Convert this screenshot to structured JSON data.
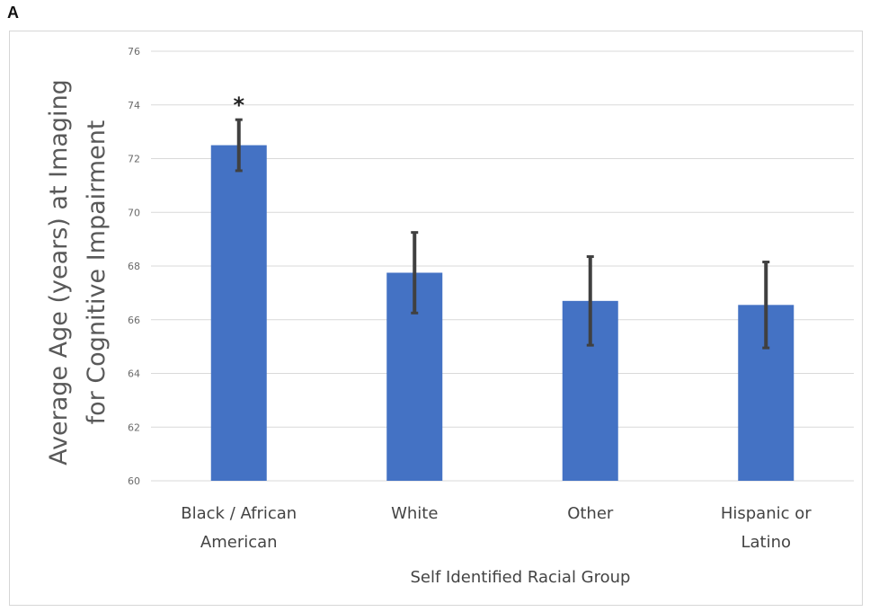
{
  "panel_label": "A",
  "chart_data": {
    "type": "bar",
    "title": "",
    "categories": [
      [
        "Black / African",
        "American"
      ],
      [
        "White"
      ],
      [
        "Other"
      ],
      [
        "Hispanic or",
        "Latino"
      ]
    ],
    "values": [
      72.5,
      67.75,
      66.7,
      66.55
    ],
    "error": [
      0.95,
      1.5,
      1.65,
      1.6
    ],
    "annotations": [
      "*",
      "",
      "",
      ""
    ],
    "ylabel": [
      "Average Age (years) at Imaging",
      "for Cognitive Impairment"
    ],
    "xlabel": "Self Identified Racial Group",
    "ylim": [
      60,
      76
    ],
    "yticks": [
      60,
      62,
      64,
      66,
      68,
      70,
      72,
      74,
      76
    ],
    "grid": true,
    "bar_color": "#4472c4",
    "error_color": "#404040",
    "grid_color": "#d9d9d9"
  }
}
